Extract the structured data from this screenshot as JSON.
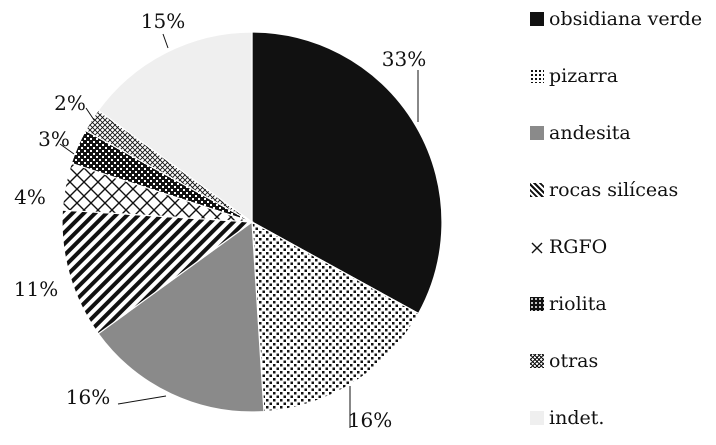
{
  "chart_data": {
    "type": "pie",
    "categories": [
      "obsidiana verde",
      "pizarra",
      "andesita",
      "rocas silíceas",
      "RGFO",
      "riolita",
      "otras",
      "indet."
    ],
    "values": [
      33,
      16,
      16,
      11,
      4,
      3,
      2,
      15
    ],
    "labels": [
      "33%",
      "16%",
      "16%",
      "11%",
      "4%",
      "3%",
      "2%",
      "15%"
    ],
    "patterns": [
      "solid-black",
      "dots",
      "solid-gray",
      "diagonal-stripes",
      "crosshatch",
      "dense-checker",
      "fine-crosshatch",
      "solid-light-gray"
    ],
    "colors": [
      "#111111",
      "#ffffff",
      "#8a8a8a",
      "#ffffff",
      "#ffffff",
      "#111111",
      "#ffffff",
      "#efefef"
    ],
    "legend_position": "right",
    "start_angle": "12 o'clock",
    "direction": "clockwise"
  }
}
